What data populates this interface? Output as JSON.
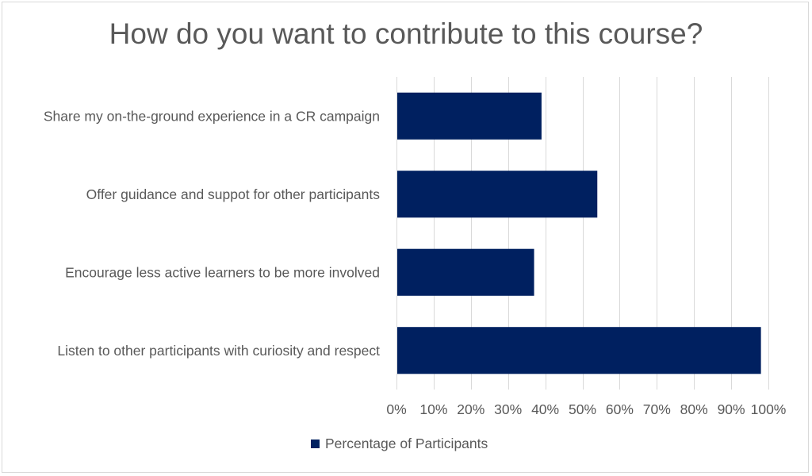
{
  "chart_data": {
    "type": "bar",
    "orientation": "horizontal",
    "title": "How do you want to contribute to this course?",
    "categories": [
      "Share my on-the-ground experience in a CR campaign",
      "Offer guidance and suppot for other participants",
      "Encourage less active learners to be more involved",
      "Listen to other participants with curiosity and respect"
    ],
    "series": [
      {
        "name": "Percentage of Participants",
        "values": [
          39,
          54,
          37,
          98
        ],
        "color": "#002060"
      }
    ],
    "xlim": [
      0,
      100
    ],
    "x_ticks": [
      "0%",
      "10%",
      "20%",
      "30%",
      "40%",
      "50%",
      "60%",
      "70%",
      "80%",
      "90%",
      "100%"
    ],
    "grid": "vertical",
    "legend_position": "bottom"
  }
}
